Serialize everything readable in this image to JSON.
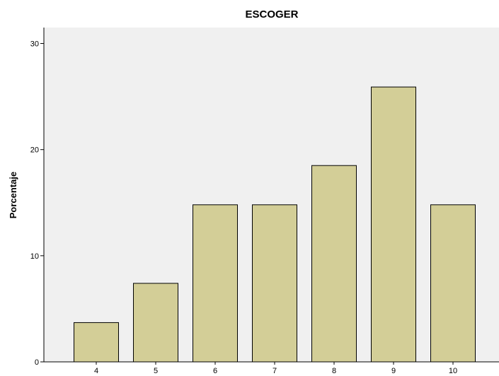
{
  "chart_data": {
    "type": "bar",
    "title": "ESCOGER",
    "xlabel": "",
    "ylabel": "Porcentaje",
    "categories": [
      "4",
      "5",
      "6",
      "7",
      "8",
      "9",
      "10"
    ],
    "values": [
      3.7,
      7.4,
      14.8,
      14.8,
      18.5,
      25.9,
      14.8
    ],
    "ylim": [
      0,
      31.5
    ],
    "yticks": [
      "0",
      "10",
      "20",
      "30"
    ],
    "grid": false,
    "colors": {
      "bar_fill": "#d3ce97",
      "plot_background": "#f0f0f0",
      "bar_outline": "#000000"
    }
  }
}
